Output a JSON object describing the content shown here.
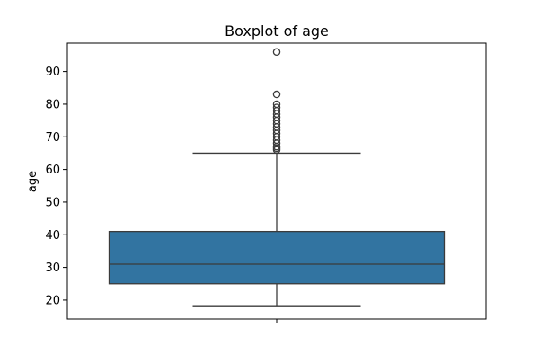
{
  "chart_data": {
    "type": "boxplot",
    "title": "Boxplot of age",
    "xlabel": "",
    "ylabel": "age",
    "ylim": [
      14.2,
      98.7
    ],
    "yticks": [
      20,
      30,
      40,
      50,
      60,
      70,
      80,
      90
    ],
    "grid": false,
    "legend": "none",
    "box": {
      "whisker_low": 18,
      "q1": 25,
      "median": 31,
      "q3": 41,
      "whisker_high": 65,
      "fliers": [
        66,
        66.5,
        67,
        68,
        69,
        70,
        71,
        72,
        73,
        74,
        75,
        76,
        77,
        78,
        79,
        80,
        83,
        96
      ]
    },
    "colors": {
      "box_fill": "#3274a1",
      "line": "#3b3b3b"
    }
  }
}
